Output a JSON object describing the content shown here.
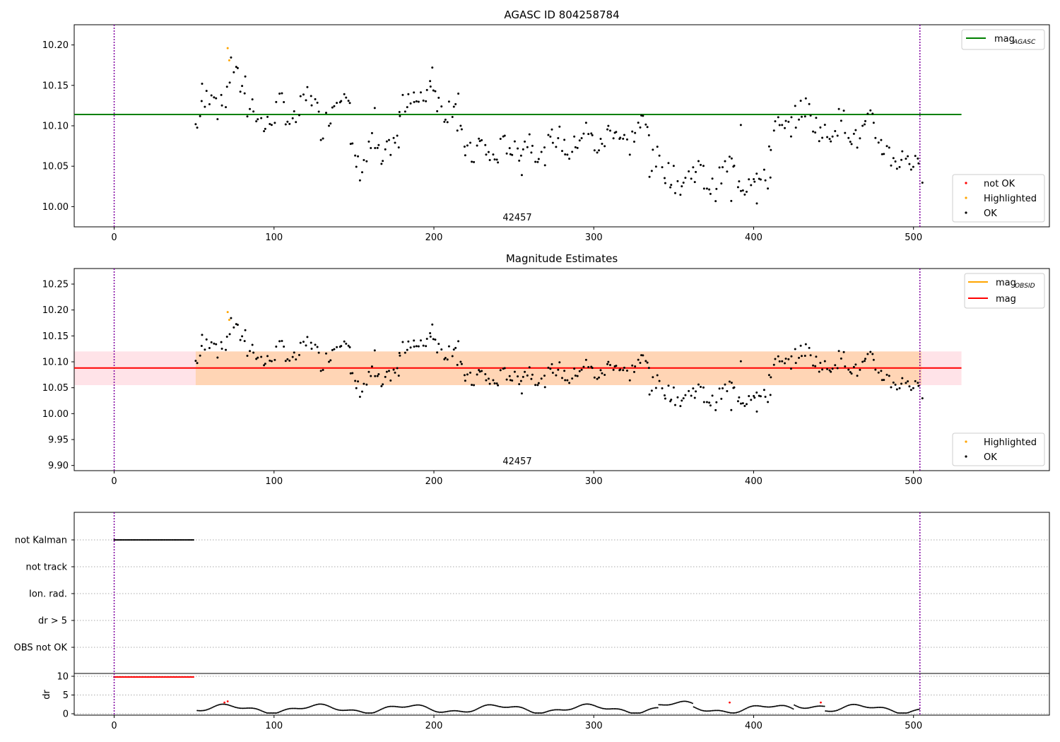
{
  "chart_data": [
    {
      "type": "scatter",
      "title": "AGASC ID 804258784",
      "annotation": "42457",
      "xlim": [
        -25,
        585
      ],
      "ylim": [
        9.975,
        10.225
      ],
      "xticks": [
        0,
        100,
        200,
        300,
        400,
        500
      ],
      "yticks": [
        10.0,
        10.05,
        10.1,
        10.15,
        10.2
      ],
      "ytick_labels": [
        "10.00",
        "10.05",
        "10.10",
        "10.15",
        "10.20"
      ],
      "vlines": [
        0,
        504
      ],
      "hline": {
        "name": "mag_AGASC",
        "y": 10.114,
        "x": [
          -25,
          530
        ],
        "color": "#008000"
      },
      "legend_lines": [
        {
          "text": "mag",
          "sub": "AGASC",
          "color": "#008000"
        }
      ],
      "legend_markers": [
        {
          "text": "not OK",
          "color": "#ff0000"
        },
        {
          "text": "Highlighted",
          "color": "#ffa500"
        },
        {
          "text": "OK",
          "color": "#000000"
        }
      ],
      "highlighted_points": [
        [
          71,
          10.196
        ],
        [
          72,
          10.181
        ]
      ],
      "ok_segments": [
        {
          "x0": 51,
          "x1": 148,
          "n": 70,
          "ys": [
            10.1,
            10.115,
            10.135,
            10.15,
            10.12,
            10.13,
            10.165,
            10.18,
            10.14,
            10.12,
            10.13,
            10.11,
            10.095,
            10.105,
            10.12,
            10.13,
            10.11,
            10.1,
            10.115,
            10.13,
            10.145,
            10.12,
            10.095,
            10.11,
            10.125,
            10.14,
            10.155,
            10.12
          ]
        },
        {
          "x0": 148,
          "x1": 178,
          "n": 25,
          "ys": [
            10.07,
            10.055,
            10.045,
            10.06,
            10.08,
            10.065,
            10.05,
            10.07,
            10.085,
            10.075
          ]
        },
        {
          "x0": 178,
          "x1": 215,
          "n": 30,
          "ys": [
            10.11,
            10.13,
            10.145,
            10.12,
            10.14,
            10.16,
            10.13,
            10.115,
            10.125,
            10.14
          ]
        },
        {
          "x0": 215,
          "x1": 335,
          "n": 95,
          "ys": [
            10.09,
            10.075,
            10.06,
            10.08,
            10.07,
            10.055,
            10.07,
            10.08,
            10.065,
            10.075,
            10.085,
            10.07,
            10.06,
            10.08,
            10.09,
            10.075,
            10.065,
            10.085,
            10.095,
            10.08,
            10.07,
            10.09,
            10.1,
            10.085,
            10.075,
            10.095,
            10.105,
            10.09
          ]
        },
        {
          "x0": 335,
          "x1": 410,
          "n": 60,
          "ys": [
            10.05,
            10.06,
            10.045,
            10.035,
            10.025,
            10.04,
            10.05,
            10.03,
            10.02,
            10.04,
            10.055,
            10.035,
            10.025,
            10.045,
            10.03,
            10.035
          ]
        },
        {
          "x0": 410,
          "x1": 505,
          "n": 75,
          "ys": [
            10.075,
            10.1,
            10.09,
            10.105,
            10.115,
            10.125,
            10.105,
            10.095,
            10.085,
            10.1,
            10.11,
            10.095,
            10.08,
            10.095,
            10.105,
            10.085,
            10.07,
            10.06,
            10.055,
            10.065,
            10.05,
            10.04
          ]
        }
      ],
      "extra_ok_points": [
        [
          55,
          10.152
        ],
        [
          82,
          10.161
        ],
        [
          199,
          10.172
        ],
        [
          392,
          10.101
        ],
        [
          386,
          10.007
        ],
        [
          402,
          10.004
        ],
        [
          255,
          10.039
        ],
        [
          163,
          10.122
        ]
      ]
    },
    {
      "type": "scatter",
      "title": "Magnitude Estimates",
      "annotation": "42457",
      "xlim": [
        -25,
        585
      ],
      "ylim": [
        9.89,
        10.28
      ],
      "xticks": [
        0,
        100,
        200,
        300,
        400,
        500
      ],
      "yticks": [
        9.9,
        9.95,
        10.0,
        10.05,
        10.1,
        10.15,
        10.2,
        10.25
      ],
      "ytick_labels": [
        "9.90",
        "9.95",
        "10.00",
        "10.05",
        "10.10",
        "10.15",
        "10.20",
        "10.25"
      ],
      "vlines": [
        0,
        504
      ],
      "mag": {
        "y": 10.088,
        "x": [
          -25,
          530
        ],
        "color": "#ff0000"
      },
      "bands": [
        {
          "y0": 10.055,
          "y1": 10.12,
          "x": [
            -25,
            530
          ],
          "color": "#ffc0cb",
          "opacity": 0.45
        },
        {
          "y0": 10.055,
          "y1": 10.12,
          "x": [
            51,
            505
          ],
          "color": "#ffa500",
          "opacity": 0.22
        }
      ],
      "legend_lines": [
        {
          "text": "mag",
          "sub": "OBSID",
          "color": "#ffa500"
        },
        {
          "text": "mag",
          "sub": "",
          "color": "#ff0000"
        }
      ],
      "legend_markers": [
        {
          "text": "Highlighted",
          "color": "#ffa500"
        },
        {
          "text": "OK",
          "color": "#000000"
        }
      ]
    },
    {
      "type": "scatter",
      "title": "",
      "xlim": [
        -25,
        585
      ],
      "xticks": [
        0,
        100,
        200,
        300,
        400,
        500
      ],
      "vlines": [
        0,
        504
      ],
      "flag_rows": [
        "not Kalman",
        "not track",
        "Ion. rad.",
        "dr > 5",
        "OBS not OK"
      ],
      "not_kalman_x": [
        0,
        50
      ],
      "dr": {
        "ylabel": "dr",
        "ylim": [
          -0.5,
          12
        ],
        "yticks": [
          0,
          5,
          10
        ],
        "ytick_labels": [
          "0",
          "5",
          "10"
        ],
        "dr_high": {
          "x": [
            0,
            50
          ],
          "y": 9.8
        },
        "red_points": [
          [
            69,
            3.0
          ],
          [
            71,
            3.3
          ],
          [
            385,
            3.0
          ],
          [
            442,
            3.0
          ],
          [
            0,
            9.8
          ]
        ]
      }
    }
  ]
}
